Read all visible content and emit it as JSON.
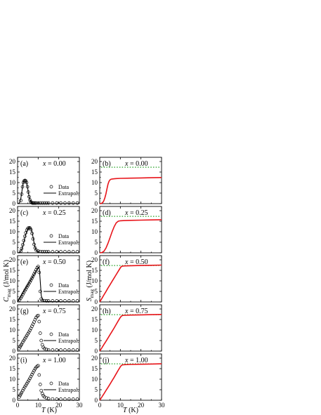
{
  "figure": {
    "x_axis_label": "T",
    "x_axis_unit": "(K)",
    "left_y_label_main": "C",
    "left_y_label_sub": "mag",
    "left_y_unit": " (J/mol K)",
    "right_y_label_main": "S",
    "right_y_label_sub": "mag",
    "right_y_unit": " (J/mol K)"
  },
  "chart_data": [
    {
      "type": "scatter",
      "panel": "a",
      "panel_label": "(a)",
      "x_var": "x",
      "x_value": " = 0.00",
      "legend": {
        "data": "Data",
        "extrapol": "Extrapol."
      },
      "xlim": [
        0,
        30
      ],
      "ylim": [
        0,
        22
      ],
      "xticks": [
        "0",
        "10",
        "20",
        "30"
      ],
      "yticks": [
        "0",
        "5",
        "10",
        "15",
        "20"
      ],
      "data_x": [
        1.6,
        2.0,
        2.4,
        2.8,
        3.2,
        3.6,
        4.0,
        4.4,
        4.8,
        5.2,
        5.6,
        6.0,
        6.4,
        6.8,
        7.2,
        7.6,
        8.0,
        8.5,
        9,
        10,
        11,
        12,
        13,
        14,
        15,
        17,
        19,
        21,
        23,
        25,
        27,
        29
      ],
      "data_y": [
        1.5,
        4.5,
        8.0,
        10.0,
        10.8,
        11.0,
        10.8,
        10.0,
        8.0,
        5.5,
        3.3,
        1.8,
        0.9,
        0.5,
        0.3,
        0.3,
        0.3,
        0.3,
        0.3,
        0.3,
        0.3,
        0.3,
        0.3,
        0.3,
        0.3,
        0.3,
        0.3,
        0.3,
        0.3,
        0.3,
        0.3,
        0.3
      ],
      "extrapol_x": [
        0.0,
        0.4,
        0.8,
        1.2,
        1.6,
        2.0,
        2.4,
        2.8,
        3.2,
        3.6,
        4.0,
        4.4,
        4.8,
        5.2,
        5.6,
        6.0,
        6.5,
        7.0,
        7.5,
        8.0,
        9.0,
        10,
        30
      ],
      "extrapol_y": [
        0,
        0.05,
        0.3,
        1.0,
        2.6,
        5.0,
        7.9,
        10.0,
        10.9,
        11.0,
        10.7,
        9.8,
        8.0,
        5.6,
        3.3,
        1.8,
        0.8,
        0.35,
        0.15,
        0.05,
        0.01,
        0,
        0
      ]
    },
    {
      "type": "line",
      "panel": "b",
      "panel_label": "(b)",
      "x_var": "x",
      "x_value": " = 0.00",
      "xlim": [
        0,
        30
      ],
      "ylim": [
        0,
        22
      ],
      "xticks": [
        "0",
        "10",
        "20",
        "30"
      ],
      "yticks": [
        "0",
        "5",
        "10",
        "15",
        "20"
      ],
      "reference_level": 17.3,
      "x": [
        0,
        0.5,
        1,
        1.5,
        2,
        2.5,
        3,
        3.5,
        4,
        4.5,
        5,
        5.5,
        6,
        7,
        8,
        10,
        15,
        20,
        25,
        30
      ],
      "y": [
        0,
        0.05,
        0.2,
        0.6,
        1.4,
        2.8,
        4.6,
        7.0,
        9.2,
        10.6,
        11.3,
        11.6,
        11.7,
        11.8,
        11.9,
        12.0,
        12.1,
        12.2,
        12.3,
        12.4
      ]
    },
    {
      "type": "scatter",
      "panel": "c",
      "panel_label": "(c)",
      "x_var": "x",
      "x_value": " = 0.25",
      "legend": {
        "data": "Data",
        "extrapol": "Extrapol."
      },
      "xlim": [
        0,
        30
      ],
      "ylim": [
        0,
        22
      ],
      "xticks": [
        "0",
        "10",
        "20",
        "30"
      ],
      "yticks": [
        "0",
        "5",
        "10",
        "15",
        "20"
      ],
      "data_x": [
        1.6,
        2.0,
        2.5,
        3.0,
        3.5,
        4.0,
        4.5,
        5.0,
        5.5,
        6.0,
        6.5,
        7.0,
        7.5,
        8.0,
        8.5,
        9,
        10,
        11,
        12,
        13,
        14,
        15,
        17,
        19,
        21,
        23,
        25,
        27,
        29
      ],
      "data_y": [
        0.8,
        2.0,
        3.8,
        5.8,
        7.8,
        9.5,
        10.8,
        11.6,
        11.9,
        11.8,
        11.0,
        9.2,
        6.6,
        4.0,
        2.3,
        1.3,
        0.8,
        0.6,
        0.5,
        0.5,
        0.5,
        0.5,
        0.5,
        0.5,
        0.5,
        0.5,
        0.5,
        0.5,
        0.5
      ],
      "extrapol_x": [
        0,
        0.5,
        1.0,
        1.5,
        2.0,
        2.5,
        3.0,
        3.5,
        4.0,
        4.5,
        5.0,
        5.5,
        6.0,
        6.5,
        7.0,
        7.5,
        8.0,
        8.5,
        9.0,
        10,
        11,
        30
      ],
      "extrapol_y": [
        0,
        0.05,
        0.25,
        0.7,
        1.6,
        3.0,
        4.9,
        6.9,
        8.8,
        10.3,
        11.3,
        11.9,
        12.0,
        11.5,
        10.0,
        7.5,
        4.8,
        2.6,
        1.3,
        0.3,
        0.05,
        0
      ]
    },
    {
      "type": "line",
      "panel": "d",
      "panel_label": "(d)",
      "x_var": "x",
      "x_value": " = 0.25",
      "xlim": [
        0,
        30
      ],
      "ylim": [
        0,
        22
      ],
      "xticks": [
        "0",
        "10",
        "20",
        "30"
      ],
      "yticks": [
        "0",
        "5",
        "10",
        "15",
        "20"
      ],
      "reference_level": 17.3,
      "x": [
        0,
        1,
        2,
        3,
        4,
        5,
        6,
        7,
        8,
        9,
        10,
        12,
        15,
        20,
        25,
        30
      ],
      "y": [
        0,
        0.1,
        0.7,
        2.2,
        4.5,
        7.2,
        10.0,
        12.4,
        14.2,
        15.0,
        15.2,
        15.3,
        15.4,
        15.5,
        15.6,
        15.7
      ]
    },
    {
      "type": "scatter",
      "panel": "e",
      "panel_label": "(e)",
      "x_var": "x",
      "x_value": " = 0.50",
      "legend": {
        "data": "Data",
        "extrapol": "Extrapol."
      },
      "xlim": [
        0,
        30
      ],
      "ylim": [
        0,
        22
      ],
      "xticks": [
        "0",
        "10",
        "20",
        "30"
      ],
      "yticks": [
        "0",
        "5",
        "10",
        "15",
        "20"
      ],
      "data_x": [
        1.0,
        1.5,
        2.0,
        2.5,
        3.0,
        3.5,
        4.0,
        4.5,
        5.0,
        5.5,
        6.0,
        6.5,
        7.0,
        7.5,
        8.0,
        8.5,
        9.0,
        9.5,
        10,
        10.5,
        11,
        11.5,
        12,
        13,
        14,
        15,
        17,
        19,
        21,
        23,
        25,
        27,
        29
      ],
      "data_y": [
        1.0,
        1.8,
        2.6,
        3.5,
        4.4,
        5.3,
        6.1,
        7.0,
        7.8,
        8.6,
        9.5,
        10.4,
        11.3,
        12.2,
        13.2,
        14.2,
        15.2,
        16.2,
        16.8,
        14.0,
        5.0,
        1.4,
        0.8,
        0.6,
        0.5,
        0.5,
        0.5,
        0.5,
        0.5,
        0.5,
        0.5,
        0.5,
        0.5
      ],
      "extrapol_x": [
        0,
        1,
        2,
        3,
        4,
        5,
        6,
        7,
        8,
        9,
        10,
        10.3,
        10.6,
        11.0,
        11.5,
        12.5,
        30
      ],
      "extrapol_y": [
        0,
        1.6,
        3.3,
        5.0,
        6.6,
        8.2,
        9.8,
        11.4,
        13.0,
        14.6,
        16.3,
        16.6,
        15.5,
        10.0,
        3.0,
        0.2,
        0
      ]
    },
    {
      "type": "line",
      "panel": "f",
      "panel_label": "(f)",
      "x_var": "x",
      "x_value": " = 0.50",
      "xlim": [
        0,
        30
      ],
      "ylim": [
        0,
        22
      ],
      "xticks": [
        "0",
        "10",
        "20",
        "30"
      ],
      "yticks": [
        "0",
        "5",
        "10",
        "15",
        "20"
      ],
      "reference_level": 17.3,
      "x": [
        0,
        1,
        2,
        3,
        4,
        5,
        6,
        7,
        8,
        9,
        10,
        10.5,
        11,
        12,
        15,
        20,
        25,
        30
      ],
      "y": [
        0,
        1.6,
        3.3,
        4.9,
        6.6,
        8.2,
        9.8,
        11.4,
        13.0,
        14.6,
        16.2,
        16.8,
        17.0,
        17.1,
        17.2,
        17.3,
        17.4,
        17.5
      ]
    },
    {
      "type": "scatter",
      "panel": "g",
      "panel_label": "(g)",
      "x_var": "x",
      "x_value": " = 0.75",
      "legend": {
        "data": "Data",
        "extrapol": "Extrapol."
      },
      "xlim": [
        0,
        30
      ],
      "ylim": [
        0,
        22
      ],
      "xticks": [
        "0",
        "10",
        "20",
        "30"
      ],
      "yticks": [
        "0",
        "5",
        "10",
        "15",
        "20"
      ],
      "data_x": [
        0.8,
        1.2,
        1.6,
        2.0,
        2.5,
        3.0,
        3.5,
        4.0,
        4.5,
        5.0,
        5.5,
        6.0,
        6.5,
        7.0,
        7.5,
        8.0,
        8.5,
        9.0,
        9.5,
        10,
        10.5,
        11,
        11.5,
        12,
        12.5,
        13,
        14,
        15,
        17,
        19,
        21,
        23,
        25,
        27,
        29
      ],
      "data_y": [
        1.2,
        2.0,
        2.7,
        3.3,
        4.2,
        5.0,
        5.8,
        6.6,
        7.4,
        8.2,
        9.0,
        9.9,
        10.8,
        11.8,
        12.8,
        13.8,
        14.9,
        15.9,
        16.6,
        16.9,
        14.0,
        8.5,
        5.0,
        3.0,
        1.8,
        1.2,
        0.8,
        0.6,
        0.5,
        0.5,
        0.5,
        0.5,
        0.5,
        0.5,
        0.5
      ],
      "extrapol_x": [
        0,
        30
      ],
      "extrapol_y": [
        0,
        0
      ]
    },
    {
      "type": "line",
      "panel": "h",
      "panel_label": "(h)",
      "x_var": "x",
      "x_value": " = 0.75",
      "xlim": [
        0,
        30
      ],
      "ylim": [
        0,
        22
      ],
      "xticks": [
        "0",
        "10",
        "20",
        "30"
      ],
      "yticks": [
        "0",
        "5",
        "10",
        "15",
        "20"
      ],
      "reference_level": 17.3,
      "x": [
        0,
        1,
        2,
        3,
        4,
        5,
        6,
        7,
        8,
        9,
        10,
        10.5,
        11,
        12,
        15,
        20,
        25,
        30
      ],
      "y": [
        0,
        1.5,
        3.1,
        4.6,
        6.2,
        7.8,
        9.4,
        11.0,
        12.7,
        14.4,
        16.0,
        16.6,
        16.9,
        17.0,
        17.1,
        17.2,
        17.3,
        17.4
      ]
    },
    {
      "type": "scatter",
      "panel": "i",
      "panel_label": "(i)",
      "x_var": "x",
      "x_value": " = 1.00",
      "legend": {
        "data": "Data",
        "extrapol": "Extrapol."
      },
      "xlim": [
        0,
        30
      ],
      "ylim": [
        0,
        22
      ],
      "xticks": [
        "0",
        "10",
        "20",
        "30"
      ],
      "yticks": [
        "0",
        "5",
        "10",
        "15",
        "20"
      ],
      "data_x": [
        0.8,
        1.2,
        1.6,
        2.0,
        2.5,
        3.0,
        3.5,
        4.0,
        4.5,
        5.0,
        5.5,
        6.0,
        6.5,
        7.0,
        7.5,
        8.0,
        8.5,
        9.0,
        9.5,
        10,
        10.5,
        11,
        11.5,
        12,
        12.5,
        13,
        14,
        15,
        17,
        19,
        21,
        23,
        25,
        27,
        29
      ],
      "data_y": [
        1.5,
        2.3,
        3.0,
        3.7,
        4.6,
        5.5,
        6.3,
        7.1,
        7.9,
        8.7,
        9.5,
        10.4,
        11.3,
        12.2,
        13.1,
        14.0,
        14.9,
        15.6,
        16.1,
        16.4,
        12.0,
        7.5,
        4.6,
        3.2,
        2.2,
        1.6,
        1.1,
        0.8,
        0.6,
        0.5,
        0.5,
        0.5,
        0.5,
        0.5,
        0.5
      ],
      "extrapol_x": [
        0,
        30
      ],
      "extrapol_y": [
        0,
        0
      ]
    },
    {
      "type": "line",
      "panel": "j",
      "panel_label": "(j)",
      "x_var": "x",
      "x_value": " = 1.00",
      "xlim": [
        0,
        30
      ],
      "ylim": [
        0,
        22
      ],
      "xticks": [
        "0",
        "10",
        "20",
        "30"
      ],
      "yticks": [
        "0",
        "5",
        "10",
        "15",
        "20"
      ],
      "reference_level": 17.3,
      "x": [
        0,
        1,
        2,
        3,
        4,
        5,
        6,
        7,
        8,
        9,
        10,
        10.5,
        11,
        12,
        15,
        20,
        25,
        30
      ],
      "y": [
        0,
        1.5,
        3.0,
        4.6,
        6.1,
        7.7,
        9.3,
        10.9,
        12.6,
        14.3,
        15.9,
        16.5,
        16.8,
        16.9,
        17.0,
        17.1,
        17.2,
        17.3
      ]
    }
  ]
}
